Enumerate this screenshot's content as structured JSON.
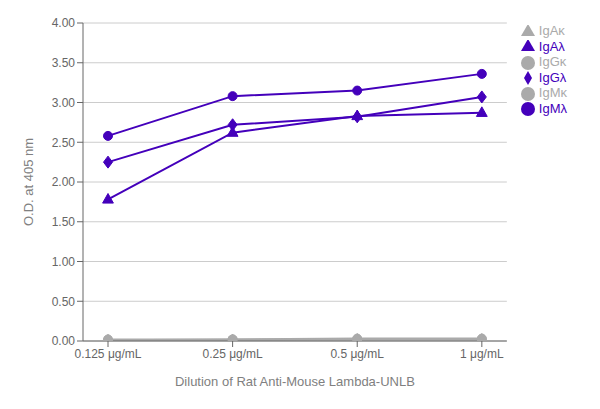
{
  "chart_data": {
    "type": "line",
    "categories": [
      "0.125 μg/mL",
      "0.25 μg/mL",
      "0.5 μg/mL",
      "1 μg/mL"
    ],
    "series": [
      {
        "name": "IgGκ",
        "color": "#aaaaaa",
        "marker": "circle",
        "values": [
          0.02,
          0.02,
          0.03,
          0.03
        ]
      },
      {
        "name": "IgMκ",
        "color": "#aaaaaa",
        "marker": "circle",
        "values": [
          0.01,
          0.02,
          0.02,
          0.02
        ]
      },
      {
        "name": "IgAκ",
        "color": "#aaaaaa",
        "marker": "triangle",
        "values": [
          0.01,
          0.01,
          0.02,
          0.02
        ]
      },
      {
        "name": "IgGλ",
        "color": "#4400bb",
        "marker": "diamond",
        "values": [
          2.25,
          2.72,
          2.82,
          3.07
        ]
      },
      {
        "name": "IgMλ",
        "color": "#4400bb",
        "marker": "circle",
        "values": [
          2.58,
          3.08,
          3.15,
          3.36
        ]
      },
      {
        "name": "IgAλ",
        "color": "#4400bb",
        "marker": "triangle",
        "values": [
          1.78,
          2.62,
          2.83,
          2.87
        ]
      }
    ],
    "xlabel": "Dilution of Rat Anti-Mouse Lambda-UNLB",
    "ylabel": "O.D. at 405 nm",
    "ylim": [
      0.0,
      4.0
    ],
    "yticks": [
      {
        "value": 0.0,
        "label": "0.00"
      },
      {
        "value": 0.5,
        "label": "0.50"
      },
      {
        "value": 1.0,
        "label": "1.00"
      },
      {
        "value": 1.5,
        "label": "1.50"
      },
      {
        "value": 2.0,
        "label": "2.00"
      },
      {
        "value": 2.5,
        "label": "2.50"
      },
      {
        "value": 3.0,
        "label": "3.00"
      },
      {
        "value": 3.5,
        "label": "3.50"
      },
      {
        "value": 4.0,
        "label": "4.00"
      }
    ],
    "grid": "y",
    "legend": "right"
  }
}
